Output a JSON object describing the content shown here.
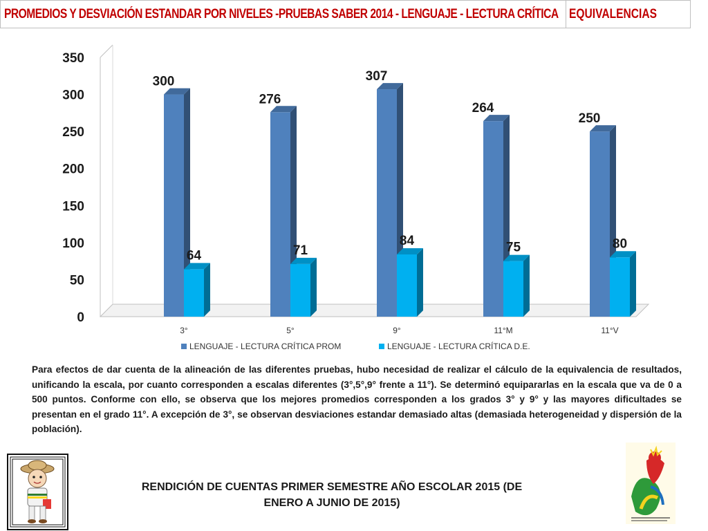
{
  "header": {
    "title": "PROMEDIOS Y DESVIACIÓN ESTANDAR POR NIVELES -PRUEBAS  SABER 2014 - LENGUAJE - LECTURA CRÍTICA",
    "equivalencias": "EQUIVALENCIAS"
  },
  "chart_data": {
    "type": "bar",
    "categories": [
      "3°",
      "5°",
      "9°",
      "11°M",
      "11°V"
    ],
    "series": [
      {
        "name": "LENGUAJE - LECTURA CRÍTICA PROM",
        "values": [
          300,
          276,
          307,
          264,
          250
        ],
        "color": "#4f81bd"
      },
      {
        "name": "LENGUAJE - LECTURA CRÍTICA D.E.",
        "values": [
          64,
          71,
          84,
          75,
          80
        ],
        "color": "#00b0f0"
      }
    ],
    "yticks": [
      0,
      50,
      100,
      150,
      200,
      250,
      300,
      350
    ],
    "ylim": [
      0,
      350
    ],
    "legend": "bottom",
    "grid": false
  },
  "paragraph": "Para efectos de dar cuenta de la alineación  de las diferentes pruebas, hubo necesidad de realizar el cálculo de la equivalencia  de resultados, unificando la escala, por cuanto corresponden a escalas diferentes (3°,5°,9° frente a 11°). Se determinó equipararlas en la escala que va de 0 a 500 puntos. Conforme con ello, se observa que los mejores promedios corresponden a los grados 3° y  9° y las mayores dificultades se presentan en el grado 11°. A excepción de 3°, se observan desviaciones estandar demasiado altas (demasiada heterogeneidad y dispersión de la población).",
  "footer": "RENDICIÓN DE CUENTAS PRIMER SEMESTRE AÑO ESCOLAR 2015 (DE ENERO A JUNIO DE 2015)",
  "colors": {
    "accent": "#c00000",
    "prom": "#4f81bd",
    "de": "#00b0f0"
  }
}
